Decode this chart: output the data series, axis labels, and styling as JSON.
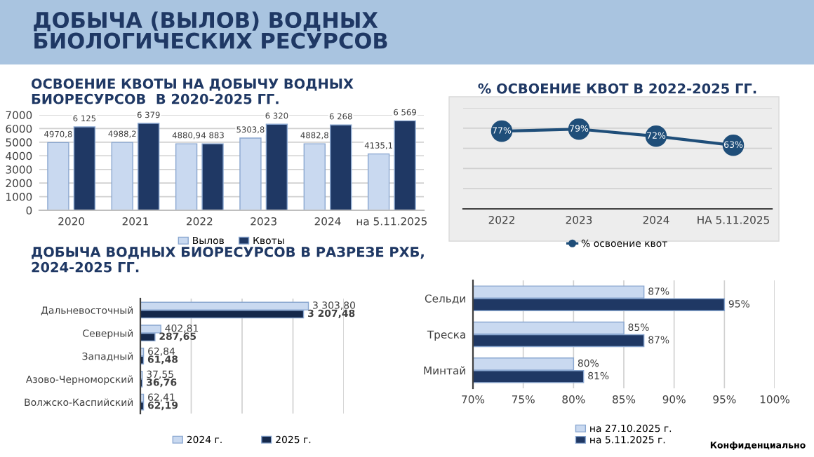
{
  "chart_data": [
    {
      "type": "other",
      "title": "ДОБЫЧА (ВЫЛОВ) ВОДНЫХ\nБИОЛОГИЧЕСКИХ РЕСУРСОВ"
    },
    {
      "type": "bar",
      "title": "ОСВОЕНИЕ КВОТЫ НА ДОБЫЧУ ВОДНЫХ\nБИОРЕСУРСОВ  В 2020-2025 ГГ.",
      "categories": [
        "2020",
        "2021",
        "2022",
        "2023",
        "2024",
        "на 5.11.2025"
      ],
      "series": [
        {
          "name": "Вылов",
          "color": "#c9d9f0",
          "values": [
            4970.8,
            4988.2,
            4880.9,
            5303.8,
            4882.8,
            4135.1
          ],
          "value_labels": [
            "4970,8",
            "4988,2",
            "4880,9",
            "5303,8",
            "4882,8",
            "4135,1"
          ]
        },
        {
          "name": "Квоты",
          "color": "#1f3864",
          "values": [
            6125,
            6379,
            4883,
            6320,
            6268,
            6569
          ],
          "value_labels": [
            "6 125",
            "6 379",
            "4 883",
            "6 320",
            "6 268",
            "6 569"
          ]
        }
      ],
      "ylim": [
        0,
        7000
      ],
      "yticks": [
        0,
        1000,
        2000,
        3000,
        4000,
        5000,
        6000,
        7000
      ],
      "grid": "y",
      "legend": "bottom"
    },
    {
      "type": "line",
      "title": "% ОСВОЕНИЕ КВОТ В 2022-2025 ГГ.",
      "categories": [
        "2022",
        "2023",
        "2024",
        "НА 5.11.2025"
      ],
      "series": [
        {
          "name": "% освоение квот",
          "color": "#1f4e79",
          "values": [
            77,
            79,
            72,
            63
          ],
          "value_labels": [
            "77%",
            "79%",
            "72%",
            "63%"
          ]
        }
      ],
      "ylim": [
        0,
        100
      ],
      "yticks": [
        {
          "value": 0,
          "label": null
        },
        {
          "value": 20,
          "label": null
        },
        {
          "value": 40,
          "label": null
        },
        {
          "value": 60,
          "label": null
        },
        {
          "value": 80,
          "label": null
        },
        {
          "value": 100,
          "label": null
        }
      ],
      "grid": "y",
      "marker": "circle",
      "line_style": "solid",
      "tick_labels": "x",
      "legend": "bottom"
    },
    {
      "type": "bar",
      "orientation": "horizontal",
      "title": "ДОБЫЧА ВОДНЫХ БИОРЕСУРСОВ В РАЗРЕЗЕ РХБ,\n2024-2025 ГГ.",
      "categories": [
        "Дальневосточный",
        "Северный",
        "Западный",
        "Азово-Черноморский",
        "Волжско-Каспийский"
      ],
      "series": [
        {
          "name": "2024 г.",
          "color": "#c9d9f0",
          "values": [
            3303.8,
            402.81,
            62.84,
            37.55,
            62.41
          ],
          "value_labels": [
            "3 303,80",
            "402,81",
            "62,84",
            "37,55",
            "62,41"
          ]
        },
        {
          "name": "2025 г.",
          "color": "#14284b",
          "values": [
            3207.48,
            287.65,
            61.48,
            36.76,
            62.19
          ],
          "value_labels": [
            "3 207,48",
            "287,65",
            "61,48",
            "36,76",
            "62,19"
          ]
        }
      ],
      "xlim": [
        0,
        4000
      ],
      "xticks": [
        {
          "value": 0,
          "label": null
        },
        {
          "value": 1000,
          "label": null
        },
        {
          "value": 2000,
          "label": null
        },
        {
          "value": 3000,
          "label": null
        },
        {
          "value": 4000,
          "label": null
        }
      ],
      "grid": "x",
      "tick_labels": "y",
      "legend": "bottom"
    },
    {
      "type": "bar",
      "orientation": "horizontal",
      "categories": [
        "Сельди",
        "Треска",
        "Минтай"
      ],
      "series": [
        {
          "name": "на 27.10.2025 г.",
          "color": "#c9d9f0",
          "values": [
            87,
            85,
            80
          ],
          "value_labels": [
            "87%",
            "85%",
            "80%"
          ]
        },
        {
          "name": "на 5.11.2025 г.",
          "color": "#1f3864",
          "values": [
            95,
            87,
            81
          ],
          "value_labels": [
            "95%",
            "87%",
            "81%"
          ]
        }
      ],
      "xlim": [
        70,
        100
      ],
      "xticks": [
        {
          "value": 70,
          "label": "70%"
        },
        {
          "value": 75,
          "label": "75%"
        },
        {
          "value": 80,
          "label": "80%"
        },
        {
          "value": 85,
          "label": "85%"
        },
        {
          "value": 90,
          "label": "90%"
        },
        {
          "value": 95,
          "label": "95%"
        },
        {
          "value": 100,
          "label": "100%"
        }
      ],
      "grid": "x",
      "legend": "bottom",
      "annotations": [
        "Конфиденциально"
      ]
    }
  ]
}
